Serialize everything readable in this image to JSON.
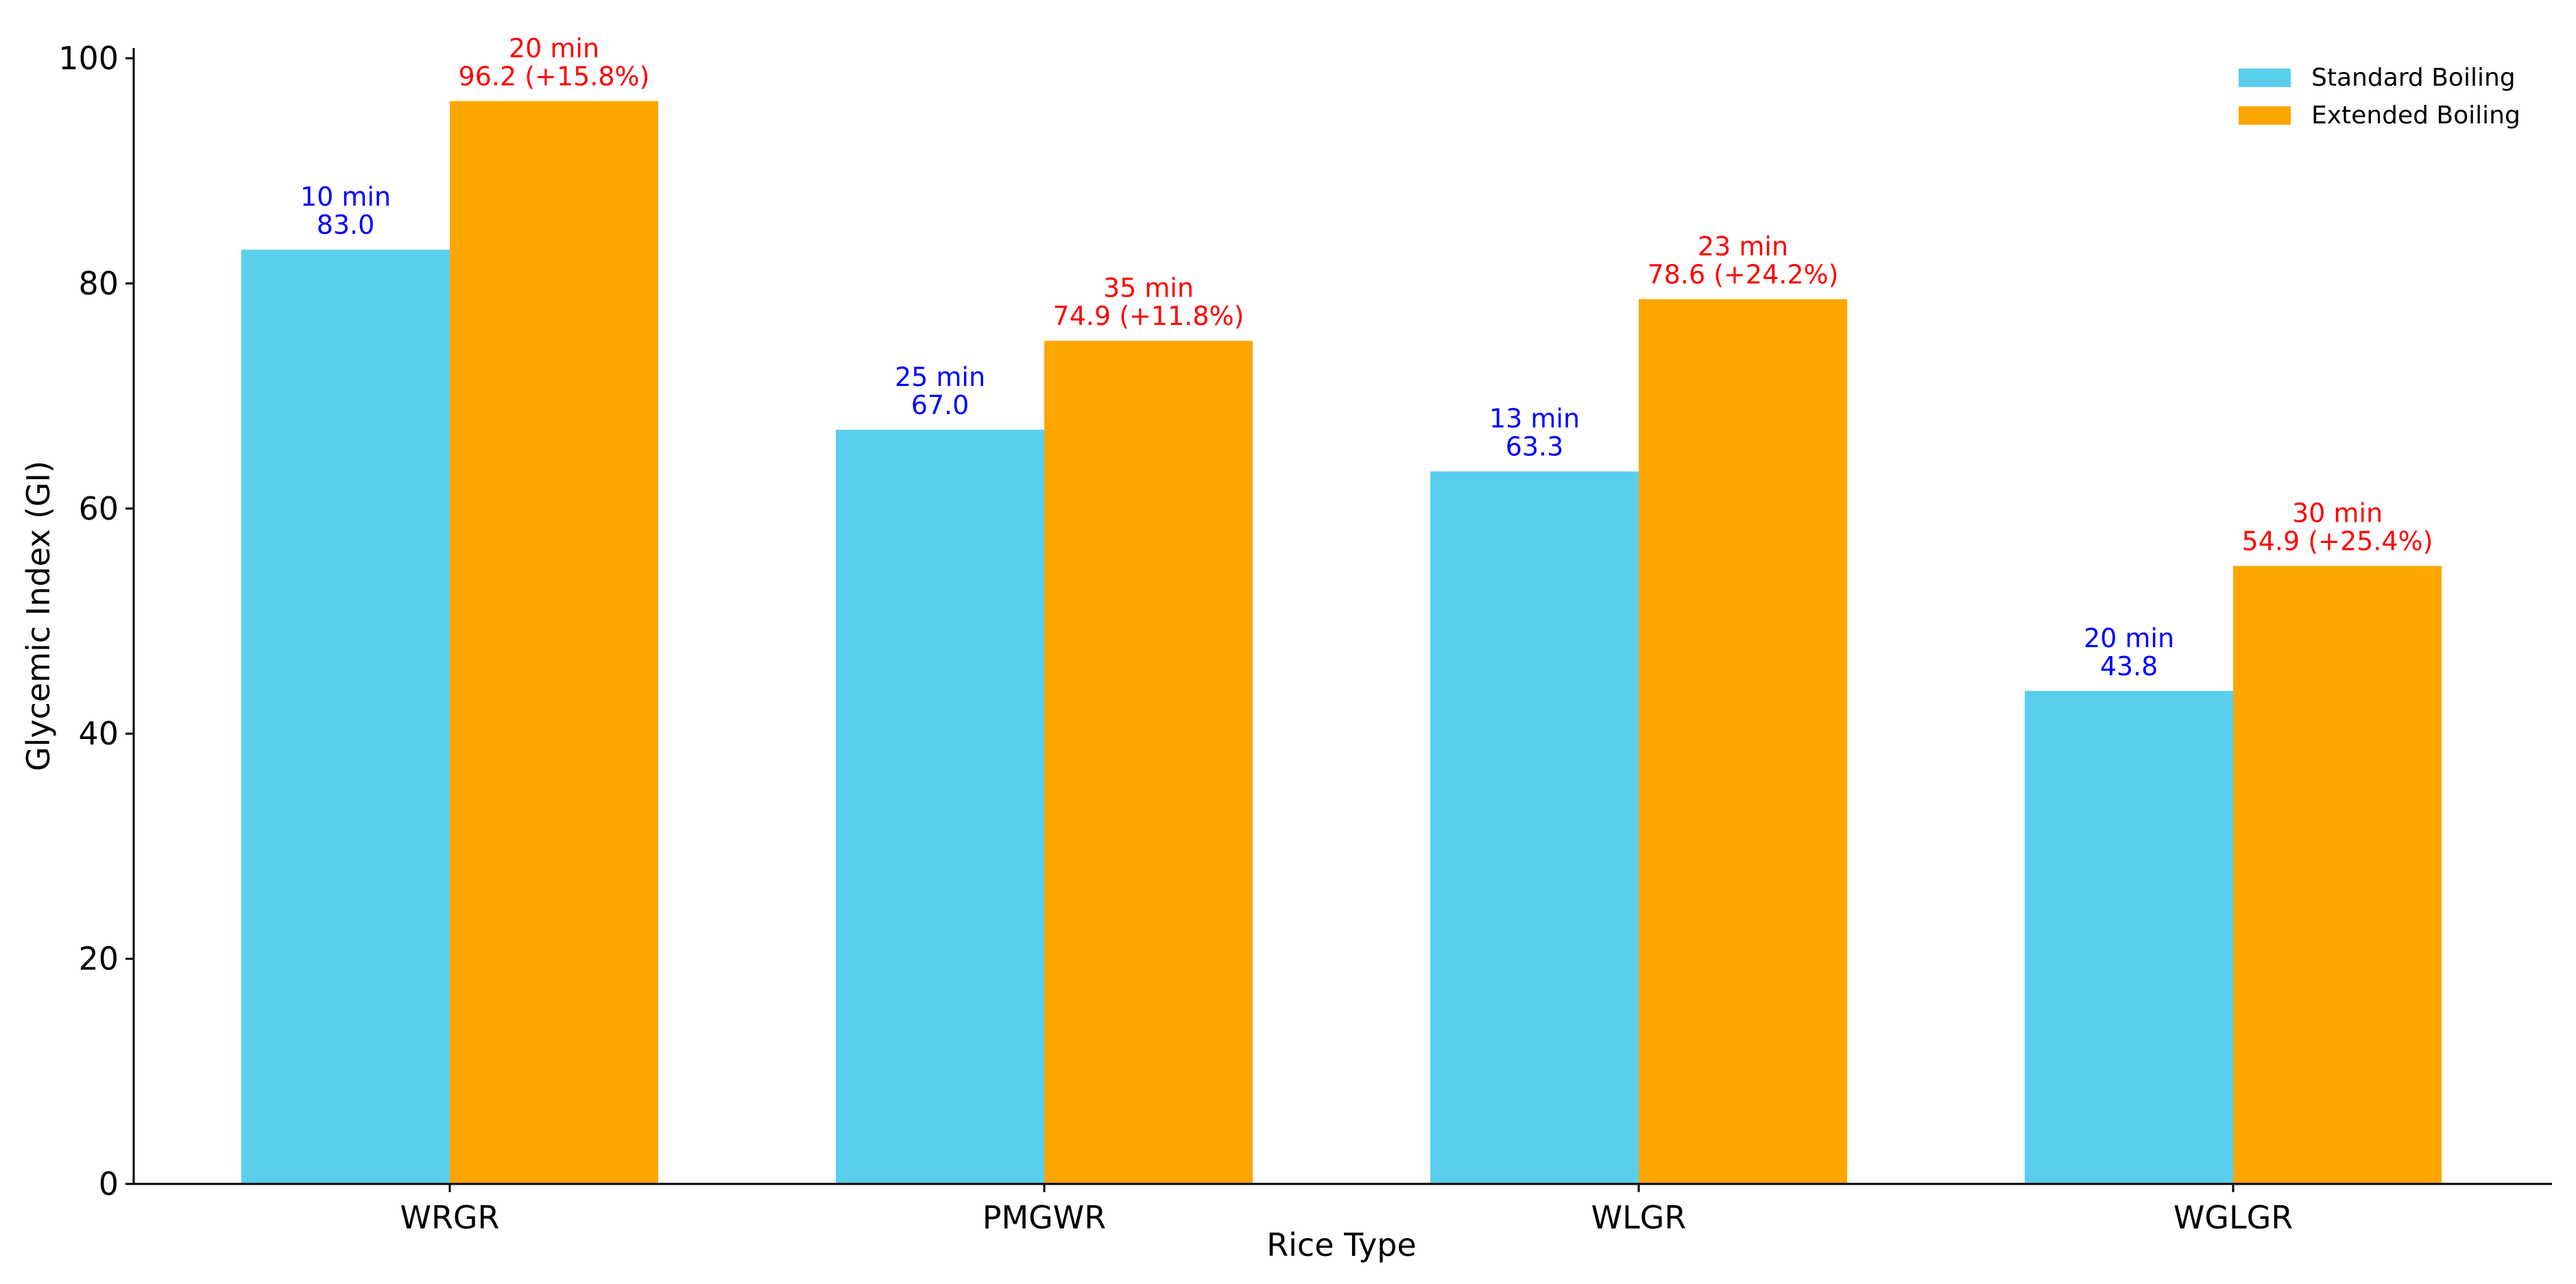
{
  "chart_data": {
    "type": "bar",
    "title": "",
    "xlabel": "Rice Type",
    "ylabel": "Glycemic Index (GI)",
    "categories": [
      "WRGR",
      "PMGWR",
      "WLGR",
      "WGLGR"
    ],
    "ylim": [
      0,
      100
    ],
    "yticks": [
      0,
      20,
      40,
      60,
      80,
      100
    ],
    "grid": false,
    "legend_position": "top-right",
    "series": [
      {
        "name": "Standard Boiling",
        "color": "#5acfed",
        "label_color": "#0000ff",
        "values": [
          83.0,
          67.0,
          63.3,
          43.8
        ],
        "time_labels": [
          "10 min",
          "25 min",
          "13 min",
          "20 min"
        ],
        "value_labels": [
          "83.0",
          "67.0",
          "63.3",
          "43.8"
        ]
      },
      {
        "name": "Extended Boiling",
        "color": "#ffa500",
        "label_color": "#ff0000",
        "values": [
          96.2,
          74.9,
          78.6,
          54.9
        ],
        "time_labels": [
          "20 min",
          "35 min",
          "23 min",
          "30 min"
        ],
        "value_labels": [
          "96.2 (+15.8%)",
          "74.9 (+11.8%)",
          "78.6 (+24.2%)",
          "54.9 (+25.4%)"
        ]
      }
    ]
  }
}
